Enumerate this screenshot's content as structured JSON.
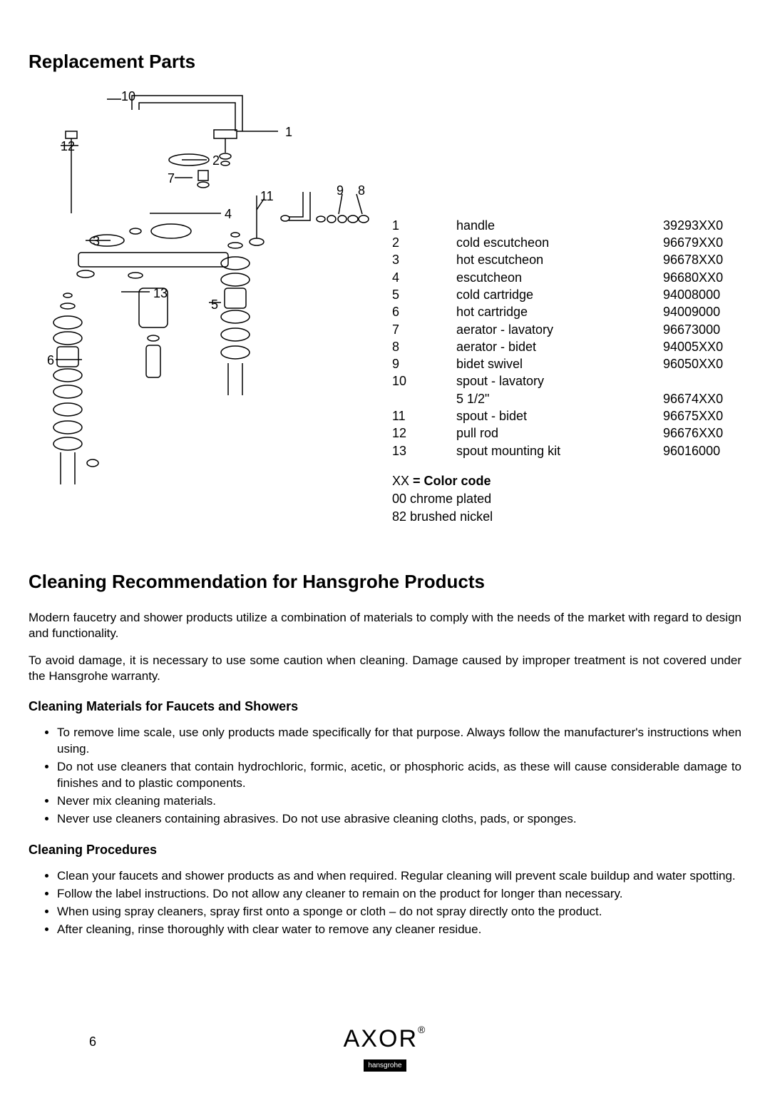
{
  "headings": {
    "replacement_parts": "Replacement Parts",
    "cleaning": "Cleaning Recommendation for Hansgrohe Products",
    "cleaning_materials": "Cleaning Materials for Faucets and Showers",
    "cleaning_procedures": "Cleaning Procedures"
  },
  "diagram": {
    "callouts": [
      "1",
      "2",
      "3",
      "4",
      "5",
      "6",
      "7",
      "8",
      "9",
      "10",
      "11",
      "12",
      "13"
    ]
  },
  "parts": [
    {
      "num": "1",
      "desc": "handle",
      "code": "39293XX0"
    },
    {
      "num": "2",
      "desc": "cold escutcheon",
      "code": "96679XX0"
    },
    {
      "num": "3",
      "desc": "hot escutcheon",
      "code": "96678XX0"
    },
    {
      "num": "4",
      "desc": "escutcheon",
      "code": "96680XX0"
    },
    {
      "num": "5",
      "desc": "cold cartridge",
      "code": "94008000"
    },
    {
      "num": "6",
      "desc": "hot cartridge",
      "code": "94009000"
    },
    {
      "num": "7",
      "desc": "aerator - lavatory",
      "code": "96673000"
    },
    {
      "num": "8",
      "desc": "aerator - bidet",
      "code": "94005XX0"
    },
    {
      "num": "9",
      "desc": "bidet swivel",
      "code": "96050XX0"
    },
    {
      "num": "10",
      "desc": "spout - lavatory",
      "code": ""
    },
    {
      "num": "",
      "desc": "5 1/2\"",
      "code": "96674XX0"
    },
    {
      "num": "11",
      "desc": "spout - bidet",
      "code": "96675XX0"
    },
    {
      "num": "12",
      "desc": "pull rod",
      "code": "96676XX0"
    },
    {
      "num": "13",
      "desc": "spout mounting kit",
      "code": "96016000"
    }
  ],
  "color_code": {
    "label_prefix": "XX ",
    "label_bold": "= Color code",
    "lines": [
      "00 chrome plated",
      "82 brushed nickel"
    ]
  },
  "cleaning_intro": [
    "Modern faucetry and shower products utilize a combination of materials to comply with the needs of the market with regard to design and functionality.",
    "To avoid damage, it is necessary to use some caution when cleaning. Damage caused by improper treatment is not covered under the Hansgrohe warranty."
  ],
  "cleaning_materials_list": [
    "To remove lime scale, use only products made specifically for that purpose.  Always follow the manufacturer's instructions when using.",
    "Do not use cleaners that contain hydrochloric, formic, acetic, or phosphoric acids, as these will cause considerable damage to finishes and to plastic components.",
    "Never mix cleaning materials.",
    "Never use cleaners containing abrasives.  Do not use abrasive cleaning cloths, pads, or sponges."
  ],
  "cleaning_procedures_list": [
    "Clean your faucets and shower products as and when required.  Regular cleaning will prevent scale buildup and water spotting.",
    "Follow the label instructions.  Do not allow any cleaner to remain on the product for longer than necessary.",
    "When using spray cleaners, spray first onto a sponge or cloth – do not spray directly onto the product.",
    "After cleaning, rinse thoroughly with clear water to remove any cleaner residue."
  ],
  "footer": {
    "page_num": "6",
    "logo_main": "AXOR",
    "logo_sub": "hansgrohe"
  },
  "colors": {
    "text": "#000000",
    "background": "#ffffff",
    "stroke": "#000000"
  }
}
